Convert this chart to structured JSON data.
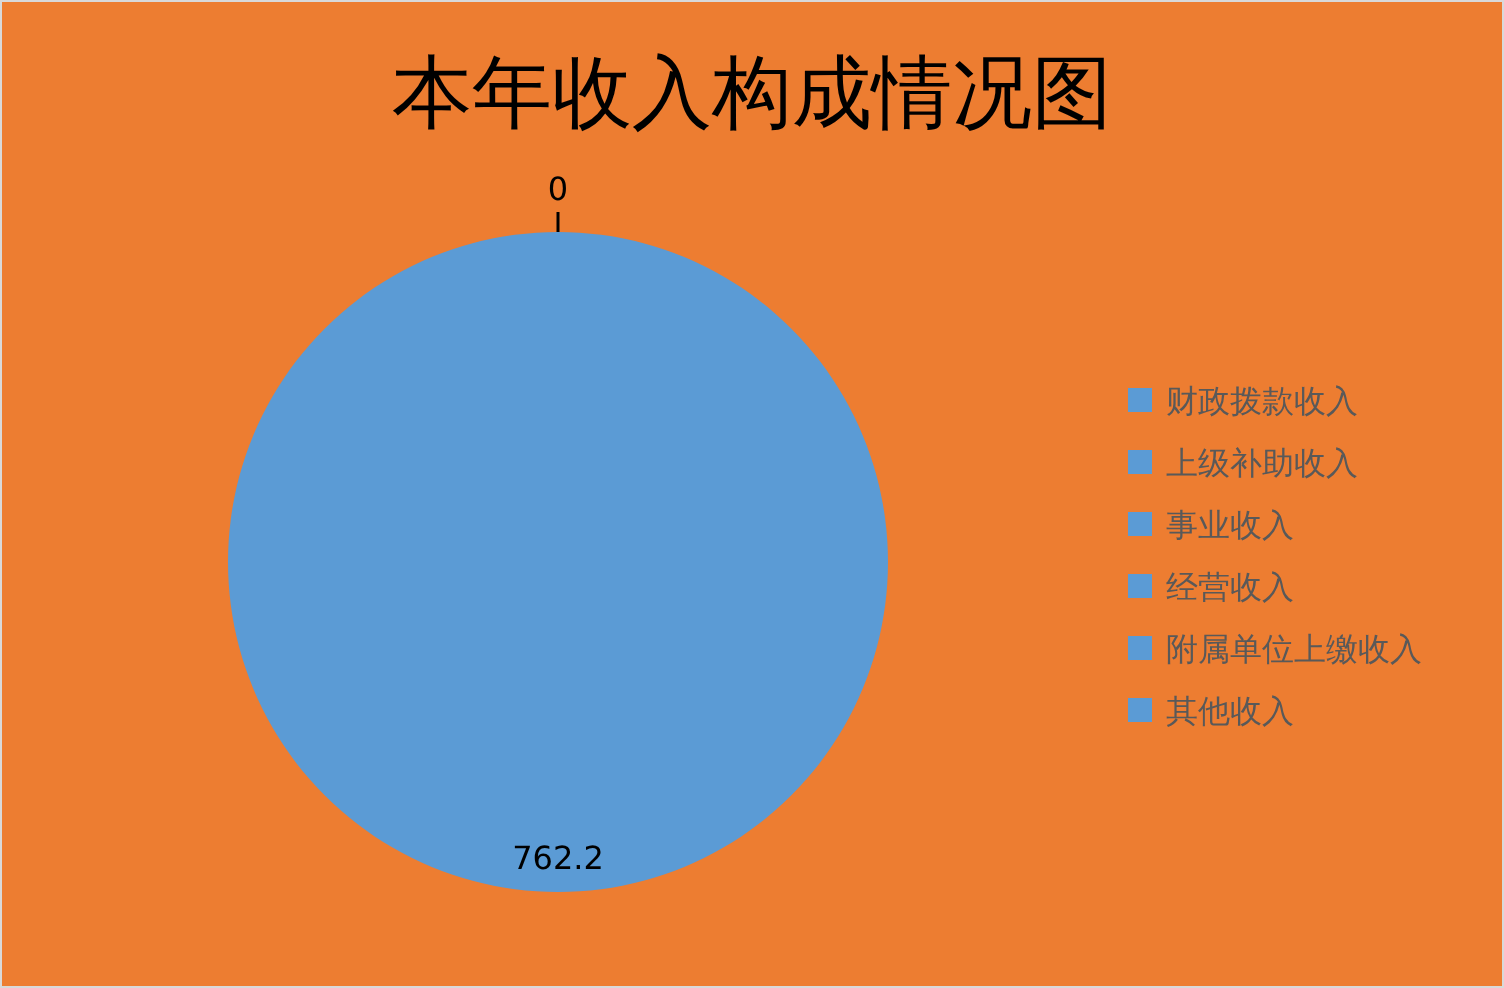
{
  "chart_data": {
    "type": "pie",
    "title": "本年收入构成情况图",
    "categories": [
      "财政拨款收入",
      "上级补助收入",
      "事业收入",
      "经营收入",
      "附属单位上缴收入",
      "其他收入"
    ],
    "values": [
      762.2,
      0,
      0,
      0,
      0,
      0
    ],
    "colors": [
      "#5b9bd5",
      "#5b9bd5",
      "#5b9bd5",
      "#5b9bd5",
      "#5b9bd5",
      "#5b9bd5"
    ],
    "value_labels": [
      "762.2",
      "0",
      null,
      null,
      null,
      null
    ],
    "legend": "right"
  }
}
